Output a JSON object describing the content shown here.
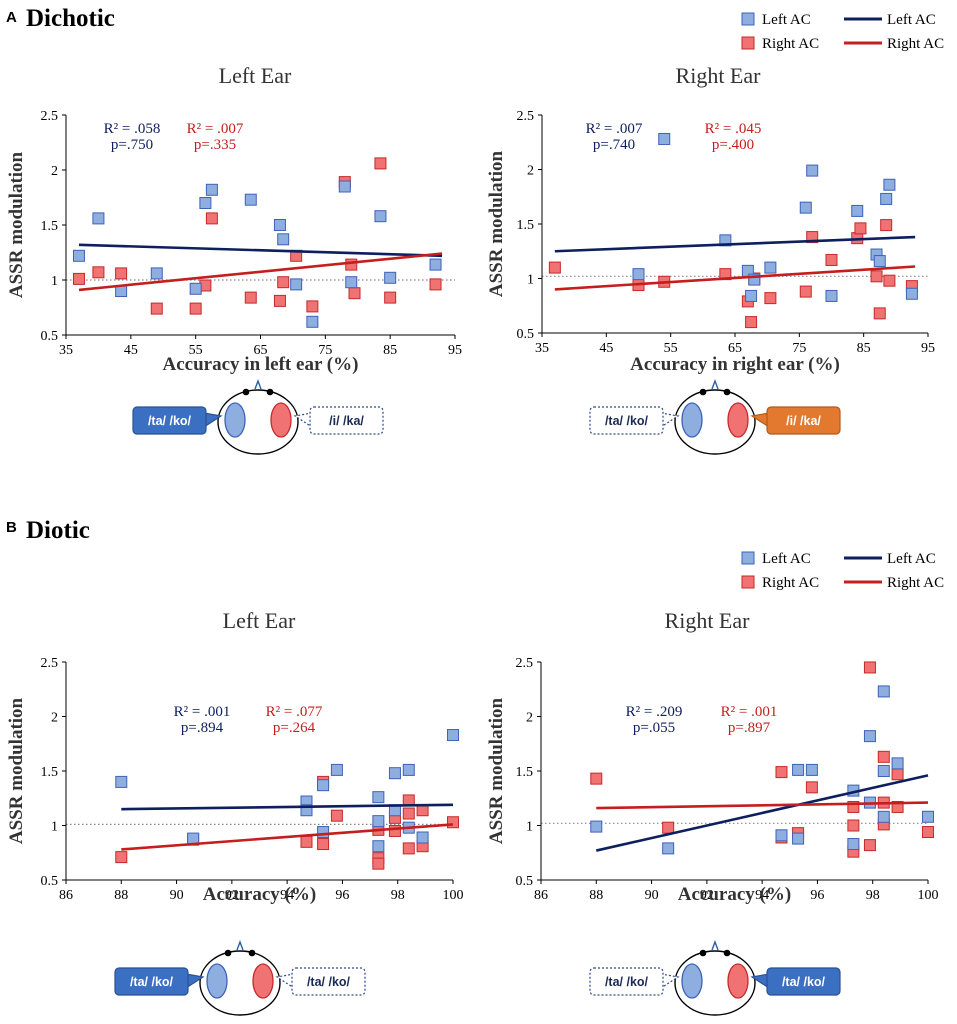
{
  "colors": {
    "left": "#0d1f5e",
    "right": "#c41e1e",
    "left_fill": "#8eaee0",
    "left_edge": "#3e62b8",
    "right_fill": "#f07272",
    "right_edge": "#c62a2a",
    "tag_blue": "#3b6fc1",
    "tag_orange": "#e2792e",
    "tag_outline": "#2a4a8c",
    "ref_line": "#888888"
  },
  "sections": [
    {
      "letter": "A",
      "title": "Dichotic"
    },
    {
      "letter": "B",
      "title": "Diotic"
    }
  ],
  "legends": [
    {
      "items": [
        {
          "label": "Left AC",
          "kind": "marker",
          "group": "left"
        },
        {
          "label": "Left AC",
          "kind": "line",
          "group": "left"
        },
        {
          "label": "Right AC",
          "kind": "marker",
          "group": "right"
        },
        {
          "label": "Right AC",
          "kind": "line",
          "group": "right"
        }
      ]
    },
    {
      "items": [
        {
          "label": "Left AC",
          "kind": "marker",
          "group": "left"
        },
        {
          "label": "Left AC",
          "kind": "line",
          "group": "left"
        },
        {
          "label": "Right AC",
          "kind": "marker",
          "group": "right"
        },
        {
          "label": "Right AC",
          "kind": "line",
          "group": "right"
        }
      ]
    }
  ],
  "chart_data": [
    {
      "id": "A-left",
      "type": "scatter",
      "title": "Left Ear",
      "xlabel": "Accuracy in  left ear (%)",
      "ylabel": "ASSR modulation",
      "xlim": [
        35,
        95
      ],
      "ylim": [
        0.5,
        2.5
      ],
      "xticks": [
        35,
        45,
        55,
        65,
        75,
        85,
        95
      ],
      "xtick_labels": [
        "35",
        "45",
        "55",
        "65",
        "75",
        "85",
        "95"
      ],
      "yticks": [
        0.5,
        1,
        1.5,
        2,
        2.5
      ],
      "ytick_labels": [
        "0.5",
        "1",
        "1.5",
        "2",
        "2.5"
      ],
      "reference_y": 1,
      "series": [
        {
          "name": "Left AC",
          "group": "left",
          "points": [
            [
              37,
              1.22
            ],
            [
              40,
              1.56
            ],
            [
              43.5,
              0.9
            ],
            [
              49,
              1.06
            ],
            [
              55,
              0.92
            ],
            [
              56.5,
              1.7
            ],
            [
              57.5,
              1.82
            ],
            [
              63.5,
              1.73
            ],
            [
              68,
              1.5
            ],
            [
              68.5,
              1.37
            ],
            [
              70.5,
              0.96
            ],
            [
              73,
              0.62
            ],
            [
              78,
              1.85
            ],
            [
              79,
              0.98
            ],
            [
              83.5,
              1.58
            ],
            [
              85,
              1.02
            ],
            [
              92,
              1.14
            ]
          ],
          "fit": [
            [
              37,
              1.32
            ],
            [
              93,
              1.22
            ]
          ]
        },
        {
          "name": "Right AC",
          "group": "right",
          "points": [
            [
              37,
              1.01
            ],
            [
              40,
              1.07
            ],
            [
              43.5,
              1.06
            ],
            [
              49,
              0.74
            ],
            [
              55,
              0.74
            ],
            [
              56.5,
              0.95
            ],
            [
              57.5,
              1.56
            ],
            [
              63.5,
              0.84
            ],
            [
              68,
              0.81
            ],
            [
              68.5,
              0.98
            ],
            [
              70.5,
              1.22
            ],
            [
              73,
              0.76
            ],
            [
              78,
              1.89
            ],
            [
              79,
              1.14
            ],
            [
              79.5,
              0.88
            ],
            [
              83.5,
              2.06
            ],
            [
              85,
              0.84
            ],
            [
              92,
              0.96
            ]
          ],
          "fit": [
            [
              37,
              0.91
            ],
            [
              93,
              1.24
            ]
          ]
        }
      ],
      "annotations": [
        {
          "group": "left",
          "lines": [
            "R² = .058",
            "p=.750"
          ]
        },
        {
          "group": "right",
          "lines": [
            "R² = .007",
            "p=.335"
          ]
        }
      ],
      "stimulus": {
        "left_tag": "/ta/ /ko/",
        "left_style": "blue",
        "right_tag": "/i/ /ka/",
        "right_style": "outline"
      }
    },
    {
      "id": "A-right",
      "type": "scatter",
      "title": "Right Ear",
      "xlabel": "Accuracy in right ear (%)",
      "ylabel": "ASSR modulation",
      "xlim": [
        35,
        95
      ],
      "ylim": [
        0.5,
        2.5
      ],
      "xticks": [
        35,
        45,
        55,
        65,
        75,
        85,
        95
      ],
      "xtick_labels": [
        "35",
        "45",
        "55",
        "65",
        "75",
        "85",
        "95"
      ],
      "yticks": [
        0.5,
        1,
        1.5,
        2,
        2.5
      ],
      "ytick_labels": [
        "0.5",
        "1",
        "1.5",
        "2",
        "2.5"
      ],
      "reference_y": 1.02,
      "series": [
        {
          "name": "Left AC",
          "group": "left",
          "points": [
            [
              50,
              1.04
            ],
            [
              54,
              2.28
            ],
            [
              63.5,
              1.35
            ],
            [
              67,
              1.07
            ],
            [
              67.5,
              0.84
            ],
            [
              68,
              0.99
            ],
            [
              70.5,
              1.1
            ],
            [
              76,
              1.65
            ],
            [
              77,
              1.99
            ],
            [
              80,
              0.84
            ],
            [
              84,
              1.62
            ],
            [
              87,
              1.22
            ],
            [
              87.5,
              1.16
            ],
            [
              88.5,
              1.73
            ],
            [
              89,
              1.86
            ],
            [
              92.5,
              0.86
            ]
          ],
          "fit": [
            [
              37,
              1.25
            ],
            [
              93,
              1.38
            ]
          ]
        },
        {
          "name": "Right AC",
          "group": "right",
          "points": [
            [
              37,
              1.1
            ],
            [
              50,
              0.94
            ],
            [
              54,
              0.97
            ],
            [
              63.5,
              1.04
            ],
            [
              67,
              0.79
            ],
            [
              67.5,
              0.6
            ],
            [
              68,
              1.0
            ],
            [
              70.5,
              0.82
            ],
            [
              76,
              0.88
            ],
            [
              77,
              1.38
            ],
            [
              80,
              1.17
            ],
            [
              84,
              1.37
            ],
            [
              84.5,
              1.46
            ],
            [
              87,
              1.02
            ],
            [
              87.5,
              0.68
            ],
            [
              88.5,
              1.49
            ],
            [
              89,
              0.98
            ],
            [
              92.5,
              0.93
            ]
          ],
          "fit": [
            [
              37,
              0.9
            ],
            [
              93,
              1.11
            ]
          ]
        }
      ],
      "annotations": [
        {
          "group": "left",
          "lines": [
            "R² = .007",
            "p=.740"
          ]
        },
        {
          "group": "right",
          "lines": [
            "R² = .045",
            "p=.400"
          ]
        }
      ],
      "stimulus": {
        "left_tag": "/ta/ /ko/",
        "left_style": "outline",
        "right_tag": "/i/ /ka/",
        "right_style": "orange"
      }
    },
    {
      "id": "B-left",
      "type": "scatter",
      "title": "Left Ear",
      "xlabel": "Accuracy (%)",
      "ylabel": "ASSR modulation",
      "xlim": [
        86,
        100
      ],
      "ylim": [
        0.5,
        2.5
      ],
      "xticks": [
        86,
        88,
        90,
        92,
        94,
        96,
        98,
        100
      ],
      "xtick_labels": [
        "86",
        "88",
        "90",
        "92",
        "94",
        "96",
        "98",
        "100"
      ],
      "yticks": [
        0.5,
        1,
        1.5,
        2,
        2.5
      ],
      "ytick_labels": [
        "0.5",
        "1",
        "1.5",
        "2",
        "2.5"
      ],
      "reference_y": 1.01,
      "series": [
        {
          "name": "Left AC",
          "group": "left",
          "points": [
            [
              88,
              1.4
            ],
            [
              90.6,
              0.88
            ],
            [
              94.7,
              1.22
            ],
            [
              94.7,
              1.14
            ],
            [
              95.3,
              1.37
            ],
            [
              95.3,
              0.94
            ],
            [
              95.8,
              1.51
            ],
            [
              97.3,
              1.26
            ],
            [
              97.3,
              1.04
            ],
            [
              97.3,
              0.81
            ],
            [
              97.9,
              1.48
            ],
            [
              97.9,
              1.14
            ],
            [
              98.4,
              1.51
            ],
            [
              98.4,
              0.98
            ],
            [
              98.9,
              0.89
            ],
            [
              100,
              1.83
            ]
          ],
          "fit": [
            [
              88,
              1.15
            ],
            [
              100,
              1.19
            ]
          ]
        },
        {
          "name": "Right AC",
          "group": "right",
          "points": [
            [
              88,
              0.71
            ],
            [
              90.6,
              0.87
            ],
            [
              94.7,
              0.85
            ],
            [
              95.3,
              1.4
            ],
            [
              95.3,
              0.83
            ],
            [
              95.8,
              1.09
            ],
            [
              97.3,
              0.96
            ],
            [
              97.3,
              0.7
            ],
            [
              97.3,
              0.65
            ],
            [
              97.9,
              1.07
            ],
            [
              97.9,
              0.95
            ],
            [
              98.4,
              1.23
            ],
            [
              98.4,
              1.11
            ],
            [
              98.4,
              0.79
            ],
            [
              98.9,
              1.14
            ],
            [
              98.9,
              0.81
            ],
            [
              100,
              1.03
            ]
          ],
          "fit": [
            [
              88,
              0.78
            ],
            [
              100,
              1.01
            ]
          ]
        }
      ],
      "annotations": [
        {
          "group": "left",
          "lines": [
            "R² = .001",
            "p=.894"
          ]
        },
        {
          "group": "right",
          "lines": [
            "R² = .077",
            "p=.264"
          ]
        }
      ],
      "stimulus": {
        "left_tag": "/ta/ /ko/",
        "left_style": "blue",
        "right_tag": "/ta/ /ko/",
        "right_style": "outline"
      }
    },
    {
      "id": "B-right",
      "type": "scatter",
      "title": "Right Ear",
      "xlabel": "Accuracy (%)",
      "ylabel": "ASSR modulation",
      "xlim": [
        86,
        100
      ],
      "ylim": [
        0.5,
        2.5
      ],
      "xticks": [
        86,
        88,
        90,
        92,
        94,
        96,
        98,
        100
      ],
      "xtick_labels": [
        "86",
        "88",
        "90",
        "92",
        "94",
        "96",
        "98",
        "100"
      ],
      "yticks": [
        0.5,
        1,
        1.5,
        2,
        2.5
      ],
      "ytick_labels": [
        "0.5",
        "1",
        "1.5",
        "2",
        "2.5"
      ],
      "reference_y": 1.02,
      "series": [
        {
          "name": "Left AC",
          "group": "left",
          "points": [
            [
              88,
              0.99
            ],
            [
              90.6,
              0.79
            ],
            [
              94.7,
              0.91
            ],
            [
              95.3,
              1.51
            ],
            [
              95.3,
              0.88
            ],
            [
              95.8,
              1.51
            ],
            [
              97.3,
              1.32
            ],
            [
              97.3,
              0.83
            ],
            [
              97.9,
              1.82
            ],
            [
              97.9,
              1.21
            ],
            [
              98.4,
              2.23
            ],
            [
              98.4,
              1.5
            ],
            [
              98.4,
              1.08
            ],
            [
              98.9,
              1.57
            ],
            [
              100,
              1.08
            ]
          ],
          "fit": [
            [
              88,
              0.77
            ],
            [
              100,
              1.46
            ]
          ]
        },
        {
          "name": "Right AC",
          "group": "right",
          "points": [
            [
              88,
              1.43
            ],
            [
              90.6,
              0.98
            ],
            [
              94.7,
              1.49
            ],
            [
              94.7,
              0.89
            ],
            [
              95.3,
              0.93
            ],
            [
              95.8,
              1.35
            ],
            [
              97.3,
              1.17
            ],
            [
              97.3,
              1.0
            ],
            [
              97.3,
              0.76
            ],
            [
              97.9,
              2.45
            ],
            [
              97.9,
              0.82
            ],
            [
              98.4,
              1.63
            ],
            [
              98.4,
              1.21
            ],
            [
              98.4,
              1.01
            ],
            [
              98.9,
              1.47
            ],
            [
              98.9,
              1.17
            ],
            [
              100,
              0.94
            ]
          ],
          "fit": [
            [
              88,
              1.16
            ],
            [
              100,
              1.21
            ]
          ]
        }
      ],
      "annotations": [
        {
          "group": "left",
          "lines": [
            "R² = .209",
            "p=.055"
          ]
        },
        {
          "group": "right",
          "lines": [
            "R² = .001",
            "p=.897"
          ]
        }
      ],
      "stimulus": {
        "left_tag": "/ta/ /ko/",
        "left_style": "outline",
        "right_tag": "/ta/ /ko/",
        "right_style": "blue"
      }
    }
  ]
}
